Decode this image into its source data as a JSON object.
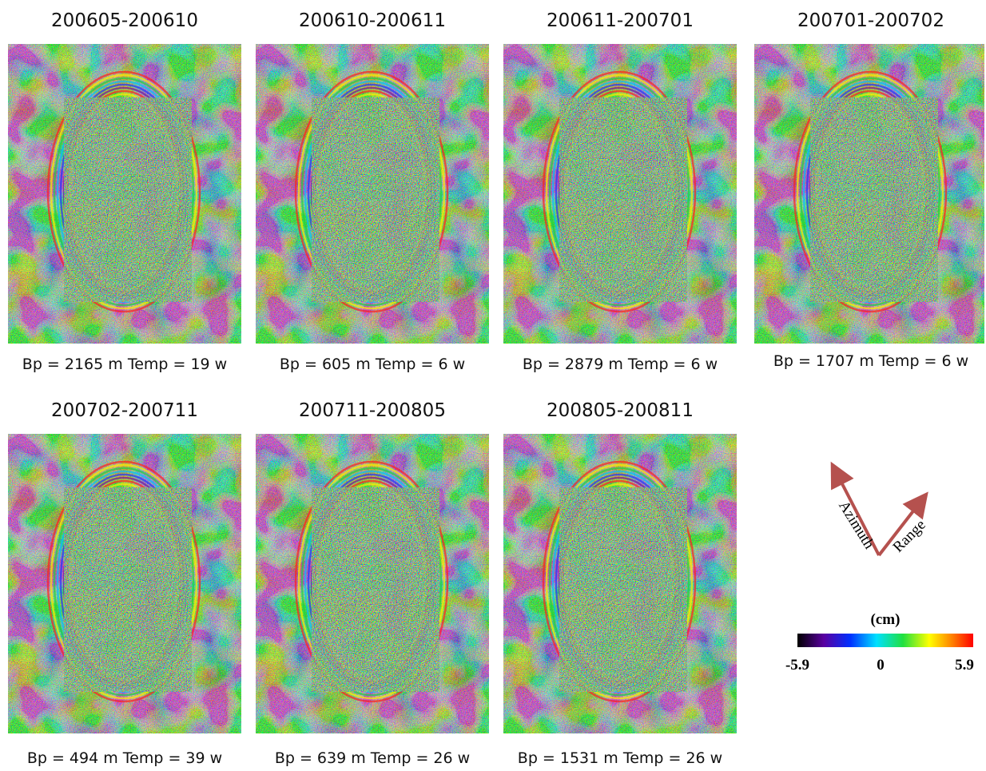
{
  "panels": [
    {
      "title": "200605-200610",
      "caption": "Bp = 2165 m Temp = 19 w"
    },
    {
      "title": "200610-200611",
      "caption": "Bp = 605 m Temp = 6 w"
    },
    {
      "title": "200611-200701",
      "caption": "Bp = 2879 m Temp = 6 w"
    },
    {
      "title": "200701-200702",
      "caption": "Bp = 1707 m Temp = 6 w"
    },
    {
      "title": "200702-200711",
      "caption": "Bp = 494 m Temp = 39 w"
    },
    {
      "title": "200711-200805",
      "caption": "Bp = 639 m Temp = 26 w"
    },
    {
      "title": "200805-200811",
      "caption": "Bp = 1531 m Temp = 26 w"
    }
  ],
  "directions": {
    "azimuth": "Azimuth",
    "range": "Range"
  },
  "colorbar": {
    "unit": "(cm)",
    "labels": [
      "-5.9",
      "0",
      "5.9"
    ]
  }
}
